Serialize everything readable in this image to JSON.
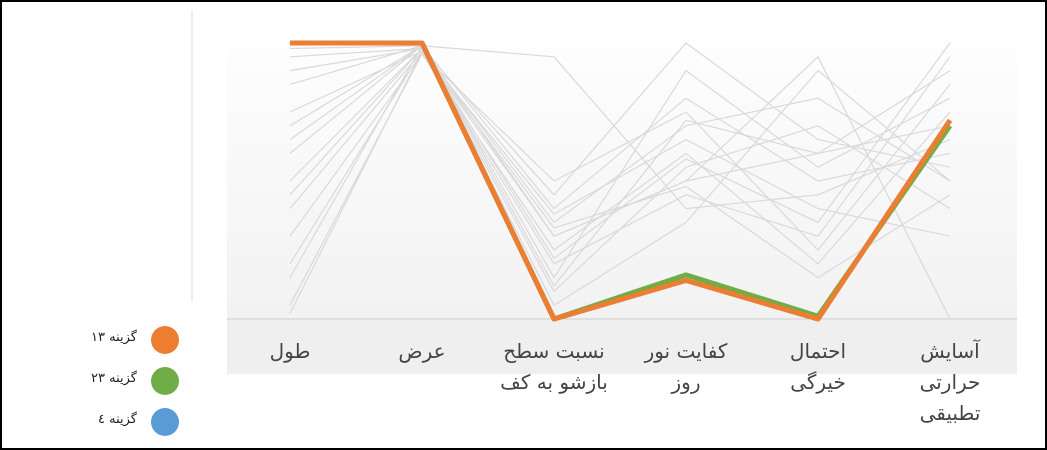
{
  "chart_data": {
    "type": "parallel",
    "categories": [
      "طول",
      "عرض",
      "نسبت سطح\nبازشو به کف",
      "کفایت نور\nروز",
      "احتمال\nخیرگی",
      "آسایش\nحرارتی\nتطبیقی"
    ],
    "ylim": [
      0,
      1
    ],
    "series": [
      {
        "color": "#d9d9d9",
        "values": [
          0.98,
          0.99,
          0.3,
          0.5,
          0.6,
          0.9
        ]
      },
      {
        "color": "#d9d9d9",
        "values": [
          0.9,
          0.98,
          0.35,
          0.7,
          0.8,
          0.5
        ]
      },
      {
        "color": "#d9d9d9",
        "values": [
          0.75,
          0.97,
          0.2,
          0.45,
          0.3,
          0.95
        ]
      },
      {
        "color": "#d9d9d9",
        "values": [
          0.6,
          0.99,
          0.4,
          0.8,
          0.5,
          0.6
        ]
      },
      {
        "color": "#d9d9d9",
        "values": [
          0.45,
          0.98,
          0.1,
          0.55,
          0.7,
          0.4
        ]
      },
      {
        "color": "#d9d9d9",
        "values": [
          0.3,
          0.96,
          0.25,
          0.6,
          0.2,
          0.75
        ]
      },
      {
        "color": "#d9d9d9",
        "values": [
          0.15,
          0.99,
          0.05,
          0.35,
          0.9,
          0.5
        ]
      },
      {
        "color": "#d9d9d9",
        "values": [
          0.02,
          0.97,
          0.38,
          0.65,
          0.4,
          0.3
        ]
      },
      {
        "color": "#d9d9d9",
        "values": [
          0.85,
          0.99,
          0.15,
          0.9,
          0.55,
          0.8
        ]
      },
      {
        "color": "#d9d9d9",
        "values": [
          0.5,
          0.98,
          0.45,
          1.0,
          0.65,
          0.55
        ]
      },
      {
        "color": "#d9d9d9",
        "values": [
          0.2,
          0.97,
          0.3,
          0.5,
          0.95,
          0.0
        ]
      },
      {
        "color": "#d9d9d9",
        "values": [
          0.7,
          0.99,
          0.95,
          0.4,
          0.45,
          0.65
        ]
      },
      {
        "color": "#d9d9d9",
        "values": [
          0.05,
          0.96,
          0.5,
          0.75,
          0.25,
          0.85
        ]
      },
      {
        "color": "#d9d9d9",
        "values": [
          0.95,
          0.98,
          0.22,
          0.58,
          0.35,
          1.0
        ]
      },
      {
        "color": "#d9d9d9",
        "values": [
          0.4,
          0.97,
          0.33,
          0.48,
          0.15,
          0.45
        ]
      },
      {
        "color": "#d9d9d9",
        "values": [
          0.65,
          0.99,
          0.12,
          0.72,
          0.6,
          0.7
        ]
      },
      {
        "name": "گزینه ٤",
        "color": "#5b9bd5",
        "values": [
          1,
          1,
          0,
          0.14,
          0,
          0.72
        ]
      },
      {
        "name": "گزینه ۲۳",
        "color": "#70ad47",
        "values": [
          1,
          1,
          0,
          0.16,
          0.01,
          0.7
        ]
      },
      {
        "name": "گزینه ۱۳",
        "color": "#ed7d31",
        "values": [
          1,
          1,
          0,
          0.14,
          0,
          0.72
        ]
      }
    ]
  }
}
